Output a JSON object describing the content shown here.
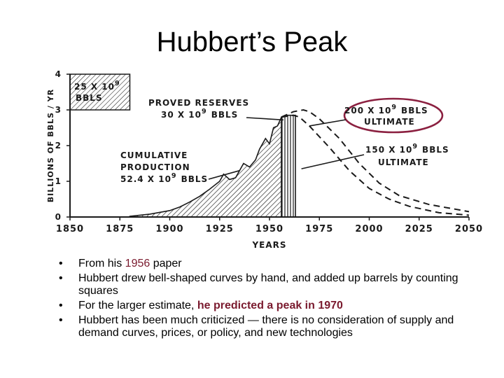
{
  "title": "Hubbert’s Peak",
  "chart_data": {
    "type": "area",
    "xlabel": "YEARS",
    "ylabel": "BILLIONS OF BBLS / YR",
    "xlim": [
      1850,
      2050
    ],
    "ylim": [
      0,
      4
    ],
    "x_ticks": [
      "1850",
      "1875",
      "1900",
      "1925",
      "1950",
      "1975",
      "2000",
      "2025",
      "2050"
    ],
    "y_ticks": [
      "0",
      "1",
      "2",
      "3",
      "4"
    ],
    "series": [
      {
        "name": "CUMULATIVE PRODUCTION",
        "x": [
          1880,
          1890,
          1900,
          1905,
          1910,
          1915,
          1920,
          1925,
          1927,
          1930,
          1933,
          1937,
          1940,
          1943,
          1945,
          1948,
          1950,
          1952,
          1954,
          1956
        ],
        "values": [
          0.02,
          0.08,
          0.18,
          0.28,
          0.42,
          0.58,
          0.78,
          1.0,
          1.2,
          1.05,
          1.1,
          1.5,
          1.4,
          1.6,
          1.9,
          2.2,
          2.05,
          2.5,
          2.55,
          2.8
        ]
      },
      {
        "name": "PROVED RESERVES",
        "x": [
          1956,
          1958,
          1960,
          1962,
          1963
        ],
        "values": [
          2.8,
          2.85,
          2.85,
          2.85,
          2.85
        ]
      },
      {
        "name": "200 X 10⁹ BBLS ULTIMATE",
        "x": [
          1956,
          1962,
          1967,
          1970,
          1975,
          1985,
          1995,
          2005,
          2015,
          2030,
          2050
        ],
        "values": [
          2.8,
          2.95,
          3.0,
          2.95,
          2.75,
          2.2,
          1.5,
          0.95,
          0.6,
          0.35,
          0.15
        ]
      },
      {
        "name": "150 X 10⁹ BBLS ULTIMATE",
        "x": [
          1956,
          1962,
          1965,
          1970,
          1980,
          1990,
          2000,
          2010,
          2020,
          2035,
          2050
        ],
        "values": [
          2.8,
          2.85,
          2.8,
          2.55,
          1.95,
          1.3,
          0.8,
          0.5,
          0.3,
          0.12,
          0.05
        ]
      }
    ],
    "annotations": {
      "box": {
        "line1": "25 X 10",
        "sup": "9",
        "line2": "BBLS"
      },
      "reserves": {
        "line1": "PROVED RESERVES",
        "line2": "30 X 10",
        "sup": "9",
        "line2b": "BBLS"
      },
      "cumulative": {
        "line1": "CUMULATIVE",
        "line2": "PRODUCTION",
        "line3": "52.4 X 10",
        "sup": "9",
        "line3b": "BBLS"
      },
      "ult200": {
        "line1": "200 X 10",
        "sup": "9",
        "line1b": "BBLS",
        "line2": "ULTIMATE"
      },
      "ult150": {
        "line1": "150 X 10",
        "sup": "9",
        "line1b": "BBLS",
        "line2": "ULTIMATE"
      }
    },
    "colors": {
      "ink": "#1a1a1a",
      "highlight_ellipse": "#8b2040"
    }
  },
  "bullets": [
    {
      "pre": "From his ",
      "hl": "1956",
      "post": " paper"
    },
    {
      "pre": "Hubbert drew bell-shaped curves by hand, and added up barrels by counting squares",
      "hl": "",
      "post": ""
    },
    {
      "pre": "For the larger estimate, ",
      "hl": "he predicted a peak in 1970",
      "post": ""
    },
    {
      "pre": "Hubbert has been much criticized — there is no consideration of supply and demand curves, prices, or policy, and new technologies",
      "hl": "",
      "post": ""
    }
  ],
  "bullet_glyph": "•"
}
